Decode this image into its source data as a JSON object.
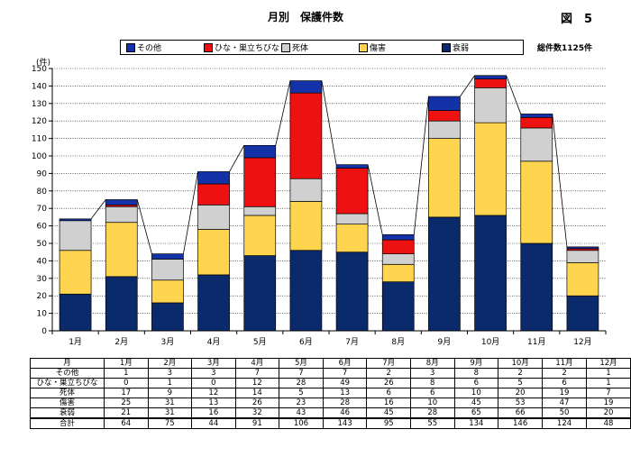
{
  "header": {
    "title": "月別　保護件数",
    "figure_label": "図　5"
  },
  "chart_data": {
    "type": "bar",
    "stacked": true,
    "categories": [
      "1月",
      "2月",
      "3月",
      "4月",
      "5月",
      "6月",
      "7月",
      "8月",
      "9月",
      "10月",
      "11月",
      "12月"
    ],
    "series": [
      {
        "name": "衰弱",
        "color": "#0b2a6b",
        "values": [
          21,
          31,
          16,
          32,
          43,
          46,
          45,
          28,
          65,
          66,
          50,
          20
        ]
      },
      {
        "name": "傷害",
        "color": "#ffd54f",
        "values": [
          25,
          31,
          13,
          26,
          23,
          28,
          16,
          10,
          45,
          53,
          47,
          19
        ]
      },
      {
        "name": "死体",
        "color": "#d0d0d0",
        "values": [
          17,
          9,
          12,
          14,
          5,
          13,
          6,
          6,
          10,
          20,
          19,
          7
        ]
      },
      {
        "name": "ひな・巣立ちびな",
        "color": "#ee1111",
        "values": [
          0,
          1,
          0,
          12,
          28,
          49,
          26,
          8,
          6,
          5,
          6,
          1
        ]
      },
      {
        "name": "その他",
        "color": "#1432a8",
        "values": [
          1,
          3,
          3,
          7,
          7,
          7,
          2,
          3,
          8,
          2,
          2,
          1
        ]
      }
    ],
    "totals": [
      64,
      75,
      44,
      91,
      106,
      143,
      95,
      55,
      134,
      146,
      124,
      48
    ],
    "ylim": [
      0,
      150
    ],
    "ytick_step": 10,
    "ylabel": "(件)",
    "total_label": "総件数1125件",
    "legend_order": [
      "その他",
      "ひな・巣立ちびな",
      "死体",
      "傷害",
      "衰弱"
    ],
    "legend_position": "top",
    "grid": "horizontal-dotted",
    "total_line": true
  },
  "table": {
    "header_label": "月",
    "total_label": "合計",
    "row_order": [
      "その他",
      "ひな・巣立ちびな",
      "死体",
      "傷害",
      "衰弱"
    ]
  }
}
